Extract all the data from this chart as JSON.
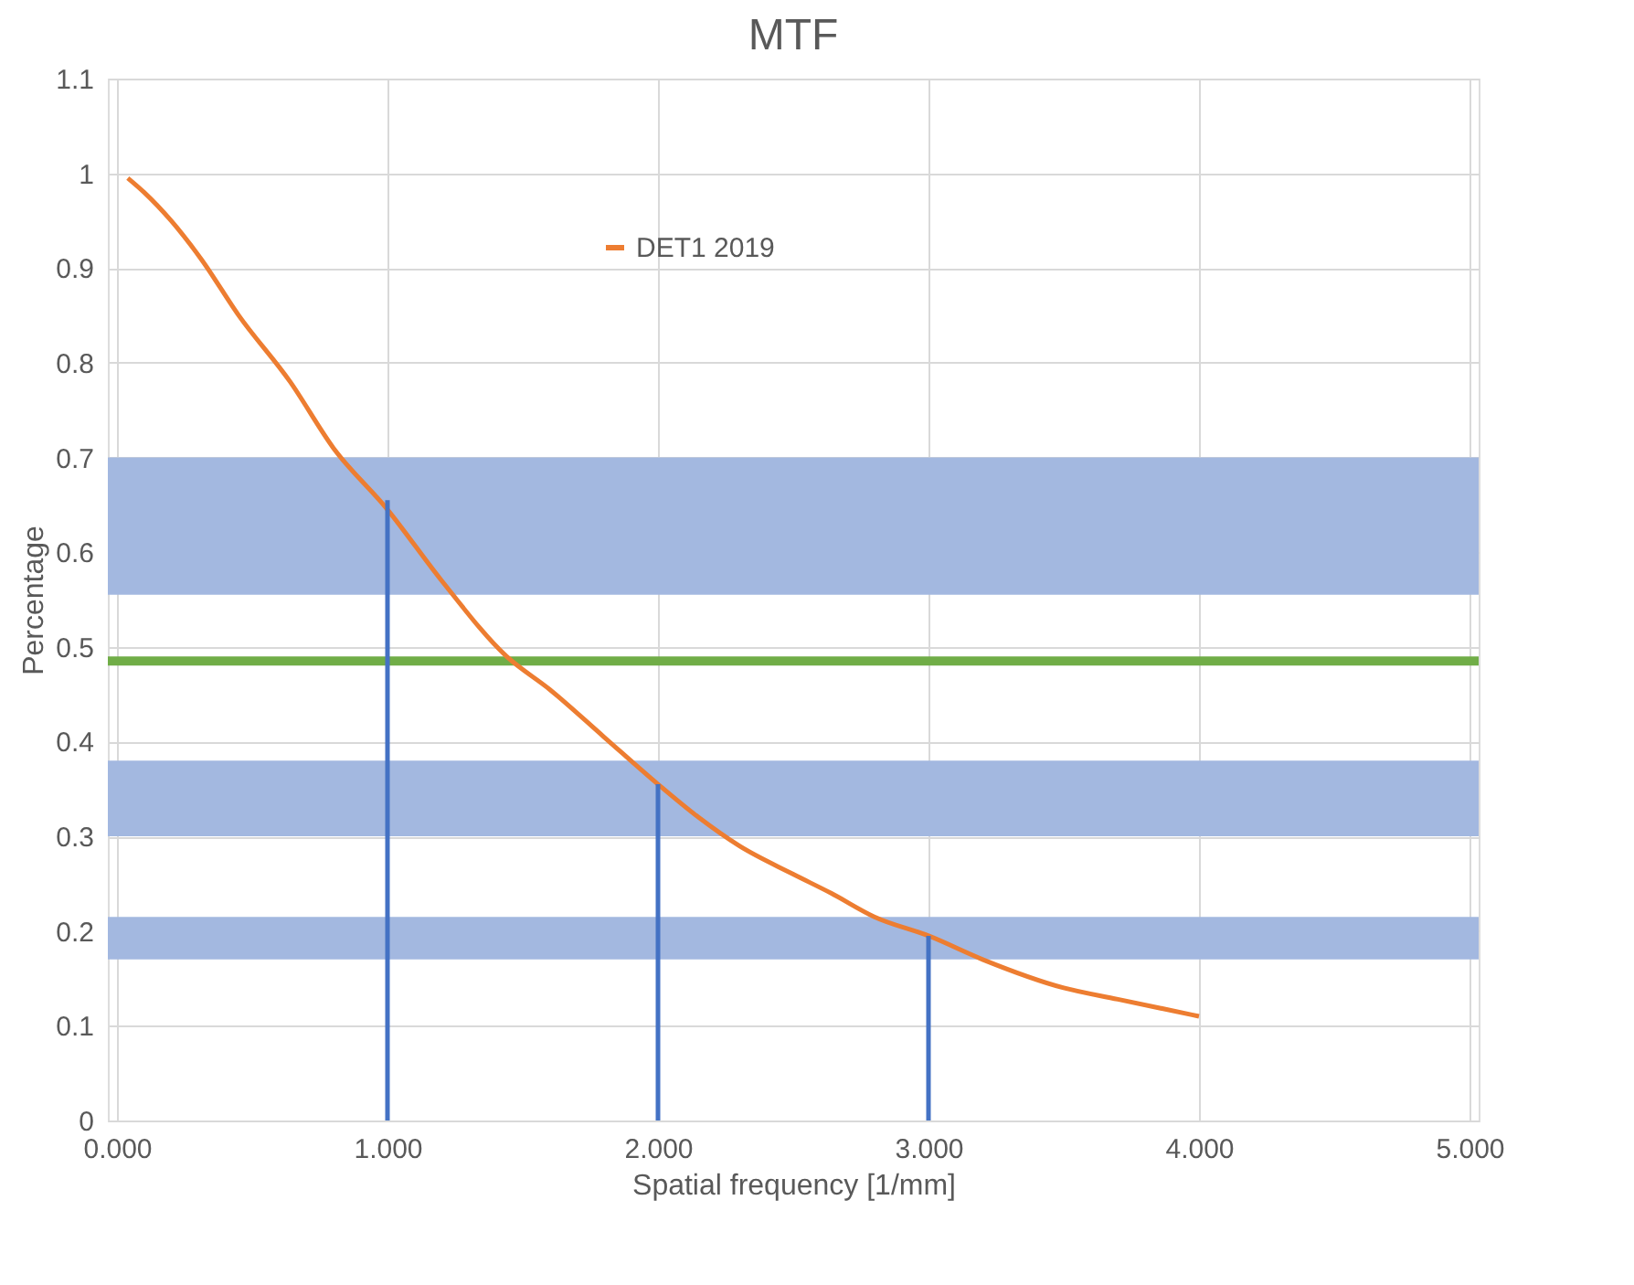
{
  "chart_data": {
    "type": "line",
    "title": "MTF",
    "xlabel": "Spatial frequency [1/mm]",
    "ylabel": "Percentage",
    "xlim": [
      0,
      5
    ],
    "xticks": [
      {
        "value": 0,
        "label": "0.000"
      },
      {
        "value": 1,
        "label": "1.000"
      },
      {
        "value": 2,
        "label": "2.000"
      },
      {
        "value": 3,
        "label": "3.000"
      },
      {
        "value": 4,
        "label": "4.000"
      },
      {
        "value": 5,
        "label": "5.000"
      }
    ],
    "ylim": [
      0,
      1.1
    ],
    "yticks": [
      0,
      0.1,
      0.2,
      0.3,
      0.4,
      0.5,
      0.6,
      0.7,
      0.8,
      0.9,
      1,
      1.1
    ],
    "grid": true,
    "legend": "top",
    "series": [
      {
        "name": "DET1 2019",
        "color": "#ed7d31",
        "x": [
          0.04,
          0.1,
          0.2,
          0.31,
          0.45,
          0.64,
          0.8,
          1.0,
          1.2,
          1.44,
          1.6,
          1.8,
          2.0,
          2.15,
          2.3,
          2.5,
          2.64,
          2.8,
          3.0,
          3.2,
          3.5,
          3.7,
          4.0
        ],
        "values": [
          0.995,
          0.98,
          0.95,
          0.91,
          0.85,
          0.78,
          0.71,
          0.645,
          0.57,
          0.49,
          0.455,
          0.405,
          0.355,
          0.32,
          0.29,
          0.26,
          0.24,
          0.215,
          0.195,
          0.17,
          0.14,
          0.128,
          0.11
        ]
      },
      {
        "type": "bar",
        "color": "#4472c4",
        "x": [
          1,
          2,
          3
        ],
        "values": [
          0.655,
          0.355,
          0.195
        ]
      }
    ],
    "bands": [
      {
        "axis": "y",
        "from": 0.555,
        "to": 0.7,
        "color": "#a3b8e0"
      },
      {
        "axis": "y",
        "from": 0.3,
        "to": 0.38,
        "color": "#a3b8e0"
      },
      {
        "axis": "y",
        "from": 0.17,
        "to": 0.215,
        "color": "#a3b8e0"
      }
    ],
    "ref_lines": [
      {
        "axis": "y",
        "value": 0.485,
        "color": "#70ad47",
        "line_style": "solid"
      }
    ]
  }
}
